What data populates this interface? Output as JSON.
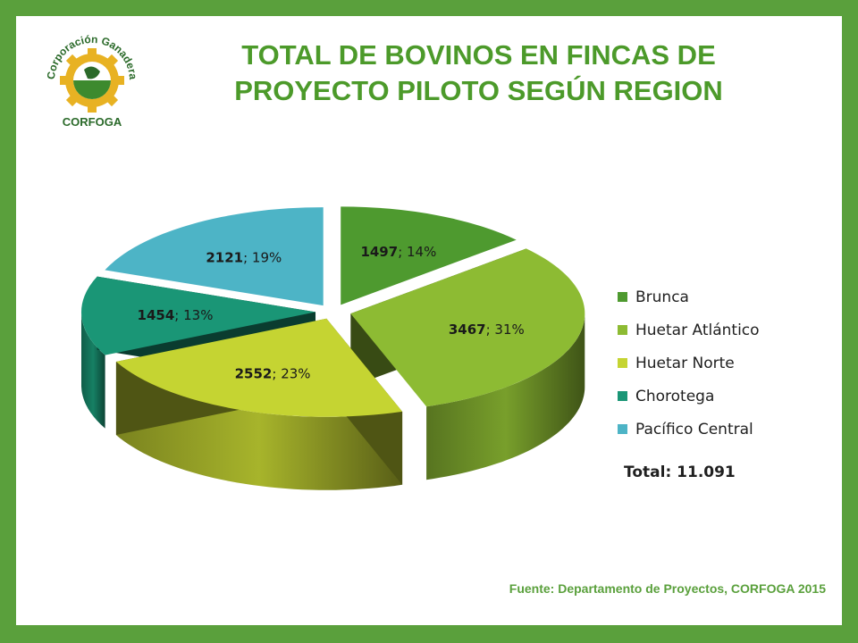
{
  "title": {
    "line1": "TOTAL DE BOVINOS EN FINCAS DE",
    "line2": "PROYECTO PILOTO SEGÚN REGION"
  },
  "logo": {
    "text_top": "Corporación Ganadera",
    "text_bottom": "CORFOGA",
    "colors": {
      "gear": "#e8b223",
      "green": "#3d8a2e",
      "text": "#2b6a2a"
    }
  },
  "chart_data": {
    "type": "pie",
    "style": "3d-exploded",
    "slices": [
      {
        "label": "Brunca",
        "value": 1497,
        "percent": "14%",
        "color": "#4e9a2f"
      },
      {
        "label": "Huetar Atlántico",
        "value": 3467,
        "percent": "31%",
        "color": "#8dbb33"
      },
      {
        "label": "Huetar Norte",
        "value": 2552,
        "percent": "23%",
        "color": "#c5d432"
      },
      {
        "label": "Chorotega",
        "value": 1454,
        "percent": "13%",
        "color": "#1a9676"
      },
      {
        "label": "Pacífico Central",
        "value": 2121,
        "percent": "19%",
        "color": "#4db4c6"
      }
    ],
    "label_separator": "; ",
    "legend_position": "right"
  },
  "total_label": "Total: 11.091",
  "source": "Fuente: Departamento de Proyectos, CORFOGA 2015",
  "colors": {
    "frame": "#5aa03c",
    "title": "#4c9a2a"
  }
}
